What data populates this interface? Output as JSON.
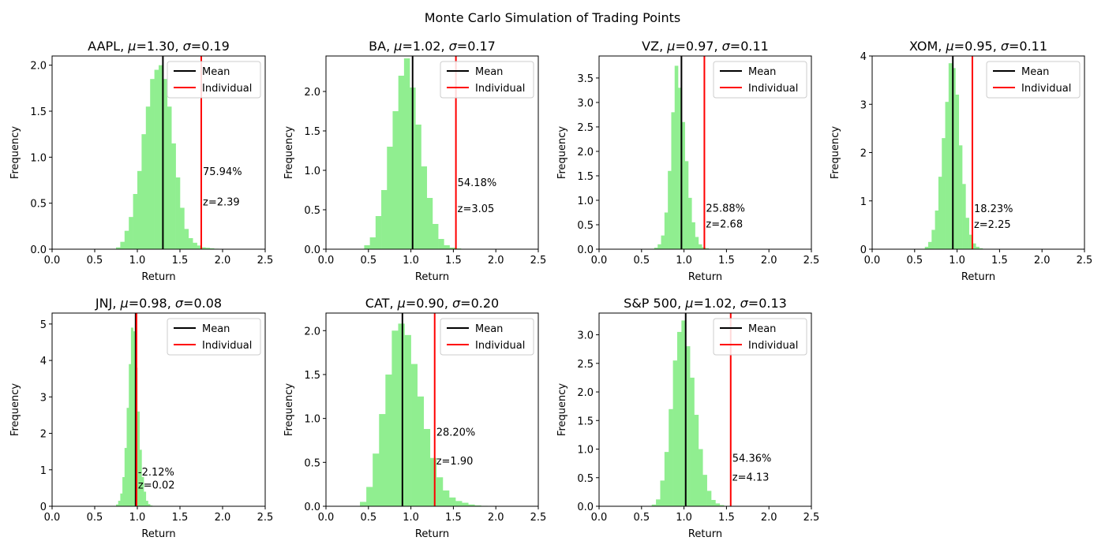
{
  "figure": {
    "title": "Monte Carlo Simulation of Trading Points",
    "xlabel": "Return",
    "ylabel": "Frequency",
    "legend": {
      "mean_label": "Mean",
      "individual_label": "Individual",
      "placement": "upper-right"
    },
    "colors": {
      "bars": "#90ee90",
      "mean_line": "#000000",
      "individual_line": "#ff0000"
    },
    "grid": false
  },
  "chart_data": [
    {
      "type": "bar",
      "ticker": "AAPL",
      "mean_text": "1.30",
      "sigma_text": "0.19",
      "xlim": [
        0,
        2.5
      ],
      "ylim": [
        0,
        2.1
      ],
      "xticks": [
        "0.0",
        "0.5",
        "1.0",
        "1.5",
        "2.0",
        "2.5"
      ],
      "yticks": [
        "0.0",
        "0.5",
        "1.0",
        "1.5",
        "2.0"
      ],
      "bin_start": 0.75,
      "bin_width": 0.05,
      "values": [
        0.02,
        0.08,
        0.2,
        0.35,
        0.6,
        0.85,
        1.25,
        1.55,
        1.85,
        1.95,
        2.0,
        1.85,
        1.55,
        1.15,
        0.78,
        0.45,
        0.22,
        0.12,
        0.07,
        0.04,
        0.02,
        0.015,
        0.01,
        0.005,
        0.003
      ],
      "mean": 1.3,
      "individual": 1.75,
      "pct_text": "75.94%",
      "z_text": "z=2.39",
      "pct_y": 0.85,
      "z_y": 0.52
    },
    {
      "type": "bar",
      "ticker": "BA",
      "mean_text": "1.02",
      "sigma_text": "0.17",
      "xlim": [
        0,
        2.5
      ],
      "ylim": [
        0,
        2.45
      ],
      "xticks": [
        "0.0",
        "0.5",
        "1.0",
        "1.5",
        "2.0",
        "2.5"
      ],
      "yticks": [
        "0.0",
        "0.5",
        "1.0",
        "1.5",
        "2.0"
      ],
      "bin_start": 0.45,
      "bin_width": 0.067,
      "values": [
        0.05,
        0.15,
        0.42,
        0.75,
        1.3,
        1.75,
        2.2,
        2.42,
        2.05,
        1.58,
        1.05,
        0.65,
        0.32,
        0.13,
        0.05,
        0.02,
        0.01,
        0.005
      ],
      "mean": 1.02,
      "individual": 1.53,
      "pct_text": "54.18%",
      "z_text": "z=3.05",
      "pct_y": 0.85,
      "z_y": 0.52
    },
    {
      "type": "bar",
      "ticker": "VZ",
      "mean_text": "0.97",
      "sigma_text": "0.11",
      "xlim": [
        0,
        2.5
      ],
      "ylim": [
        0,
        3.95
      ],
      "xticks": [
        "0.0",
        "0.5",
        "1.0",
        "1.5",
        "2.0",
        "2.5"
      ],
      "yticks": [
        "0.0",
        "0.5",
        "1.0",
        "1.5",
        "2.0",
        "2.5",
        "3.0",
        "3.5"
      ],
      "bin_start": 0.65,
      "bin_width": 0.04,
      "values": [
        0.03,
        0.1,
        0.28,
        0.75,
        1.6,
        2.8,
        3.75,
        3.3,
        2.6,
        1.8,
        1.05,
        0.55,
        0.25,
        0.1,
        0.04,
        0.02,
        0.008
      ],
      "mean": 0.97,
      "individual": 1.24,
      "pct_text": "25.88%",
      "z_text": "z=2.68",
      "pct_y": 0.85,
      "z_y": 0.52
    },
    {
      "type": "bar",
      "ticker": "XOM",
      "mean_text": "0.95",
      "sigma_text": "0.11",
      "xlim": [
        0,
        2.5
      ],
      "ylim": [
        0,
        4.0
      ],
      "xticks": [
        "0.0",
        "0.5",
        "1.0",
        "1.5",
        "2.0",
        "2.5"
      ],
      "yticks": [
        "0",
        "1",
        "2",
        "3",
        "4"
      ],
      "bin_start": 0.62,
      "bin_width": 0.04,
      "values": [
        0.05,
        0.15,
        0.4,
        0.8,
        1.5,
        2.3,
        3.05,
        3.85,
        3.75,
        3.2,
        2.15,
        1.35,
        0.65,
        0.3,
        0.12,
        0.05,
        0.02,
        0.008
      ],
      "mean": 0.95,
      "individual": 1.18,
      "pct_text": "18.23%",
      "z_text": "z=2.25",
      "pct_y": 0.85,
      "z_y": 0.52
    },
    {
      "type": "bar",
      "ticker": "JNJ",
      "mean_text": "0.98",
      "sigma_text": "0.08",
      "xlim": [
        0,
        2.5
      ],
      "ylim": [
        0,
        5.3
      ],
      "xticks": [
        "0.0",
        "0.5",
        "1.0",
        "1.5",
        "2.0",
        "2.5"
      ],
      "yticks": [
        "0",
        "1",
        "2",
        "3",
        "4",
        "5"
      ],
      "bin_start": 0.75,
      "bin_width": 0.025,
      "values": [
        0.05,
        0.15,
        0.35,
        0.8,
        1.6,
        2.7,
        3.9,
        4.9,
        4.8,
        3.8,
        2.6,
        1.55,
        0.8,
        0.4,
        0.15,
        0.06,
        0.02,
        0.008
      ],
      "mean": 0.98,
      "individual": 0.99,
      "pct_text": "-2.12%",
      "z_text": "z=0.02",
      "pct_y": 0.95,
      "z_y": 0.6
    },
    {
      "type": "bar",
      "ticker": "CAT",
      "mean_text": "0.90",
      "sigma_text": "0.20",
      "xlim": [
        0,
        2.5
      ],
      "ylim": [
        0,
        2.2
      ],
      "xticks": [
        "0.0",
        "0.5",
        "1.0",
        "1.5",
        "2.0",
        "2.5"
      ],
      "yticks": [
        "0.0",
        "0.5",
        "1.0",
        "1.5",
        "2.0"
      ],
      "bin_start": 0.4,
      "bin_width": 0.075,
      "values": [
        0.05,
        0.22,
        0.6,
        1.05,
        1.5,
        2.0,
        2.08,
        1.95,
        1.62,
        1.25,
        0.88,
        0.55,
        0.33,
        0.18,
        0.1,
        0.06,
        0.04,
        0.02,
        0.01,
        0.005
      ],
      "mean": 0.9,
      "individual": 1.28,
      "pct_text": "28.20%",
      "z_text": "z=1.90",
      "pct_y": 0.85,
      "z_y": 0.52
    },
    {
      "type": "bar",
      "ticker": "S&P 500",
      "mean_text": "1.02",
      "sigma_text": "0.13",
      "xlim": [
        0,
        2.5
      ],
      "ylim": [
        0,
        3.38
      ],
      "xticks": [
        "0.0",
        "0.5",
        "1.0",
        "1.5",
        "2.0",
        "2.5"
      ],
      "yticks": [
        "0.0",
        "0.5",
        "1.0",
        "1.5",
        "2.0",
        "2.5",
        "3.0"
      ],
      "bin_start": 0.62,
      "bin_width": 0.05,
      "values": [
        0.03,
        0.12,
        0.45,
        0.95,
        1.7,
        2.55,
        3.05,
        3.25,
        2.8,
        2.25,
        1.6,
        1.0,
        0.55,
        0.27,
        0.11,
        0.05,
        0.02
      ],
      "mean": 1.02,
      "individual": 1.55,
      "pct_text": "54.36%",
      "z_text": "z=4.13",
      "pct_y": 0.85,
      "z_y": 0.52
    }
  ]
}
